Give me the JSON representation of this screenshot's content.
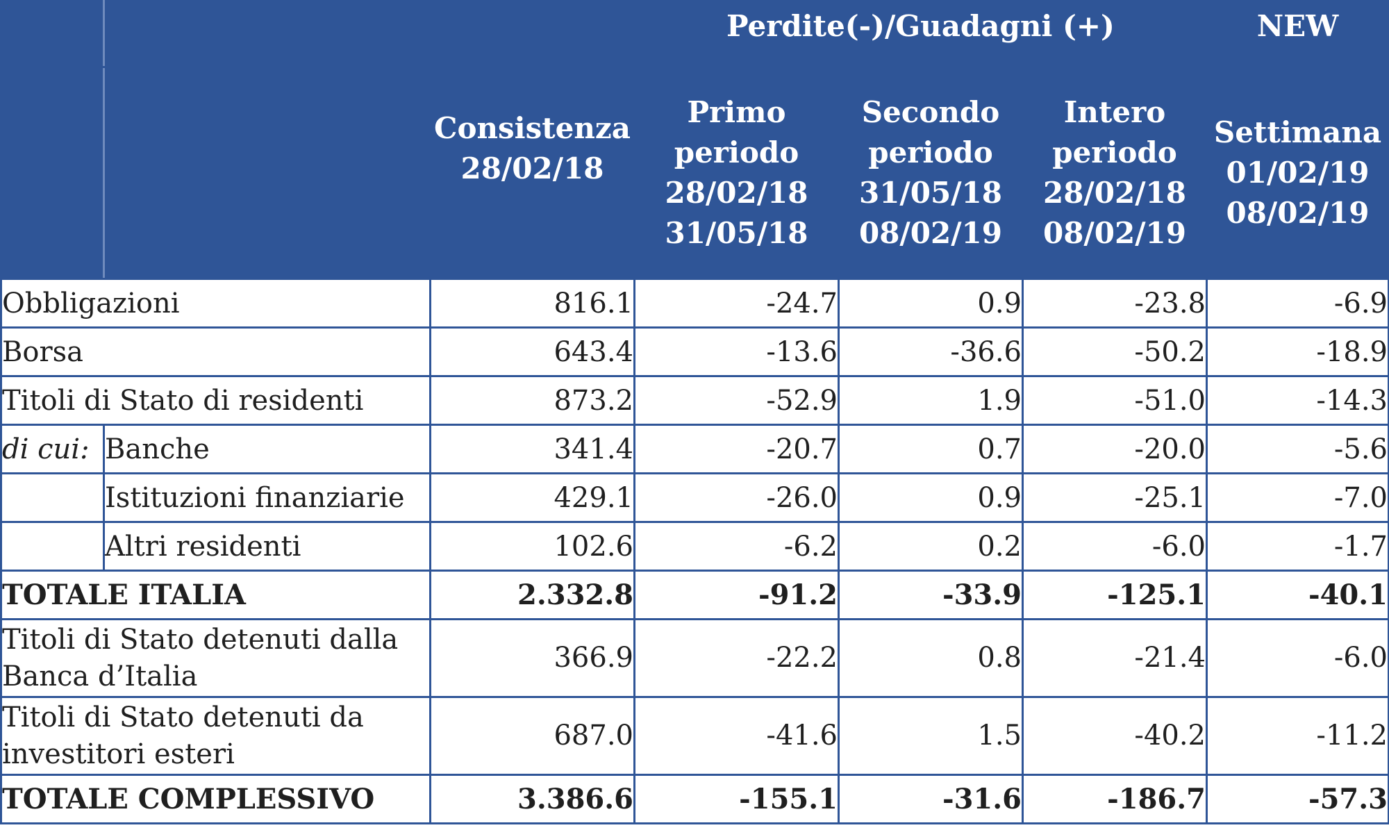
{
  "header": {
    "group_label": "Perdite(-)/Guadagni (+)",
    "new_label": "NEW",
    "columns": [
      {
        "line1": "Consistenza",
        "line2": "28/02/18"
      },
      {
        "line1": "Primo",
        "line2": "periodo",
        "line3": "28/02/18",
        "line4": "31/05/18"
      },
      {
        "line1": "Secondo",
        "line2": "periodo",
        "line3": "31/05/18",
        "line4": "08/02/19"
      },
      {
        "line1": "Intero",
        "line2": "periodo",
        "line3": "28/02/18",
        "line4": "08/02/19"
      },
      {
        "line1": "Settimana",
        "line2": "01/02/19",
        "line3": "08/02/19"
      }
    ]
  },
  "rows": [
    {
      "label": "Obbligazioni",
      "values": [
        "816.1",
        "-24.7",
        "0.9",
        "-23.8",
        "-6.9"
      ]
    },
    {
      "label": "Borsa",
      "values": [
        "643.4",
        "-13.6",
        "-36.6",
        "-50.2",
        "-18.9"
      ]
    },
    {
      "label": "Titoli di Stato di residenti",
      "values": [
        "873.2",
        "-52.9",
        "1.9",
        "-51.0",
        "-14.3"
      ]
    },
    {
      "prefix": "di cui:",
      "label": "Banche",
      "values": [
        "341.4",
        "-20.7",
        "0.7",
        "-20.0",
        "-5.6"
      ]
    },
    {
      "label": "Istituzioni finanziarie",
      "values": [
        "429.1",
        "-26.0",
        "0.9",
        "-25.1",
        "-7.0"
      ]
    },
    {
      "label": "Altri residenti",
      "values": [
        "102.6",
        "-6.2",
        "0.2",
        "-6.0",
        "-1.7"
      ]
    },
    {
      "label": "TOTALE ITALIA",
      "values": [
        "2.332.8",
        "-91.2",
        "-33.9",
        "-125.1",
        "-40.1"
      ]
    },
    {
      "label_line1": "Titoli di Stato detenuti dalla",
      "label_line2": "Banca d’Italia",
      "values": [
        "366.9",
        "-22.2",
        "0.8",
        "-21.4",
        "-6.0"
      ]
    },
    {
      "label_line1": "Titoli di Stato detenuti da",
      "label_line2": "investitori esteri",
      "values": [
        "687.0",
        "-41.6",
        "1.5",
        "-40.2",
        "-11.2"
      ]
    },
    {
      "label": "TOTALE COMPLESSIVO",
      "values": [
        "3.386.6",
        "-155.1",
        "-31.6",
        "-186.7",
        "-57.3"
      ]
    }
  ]
}
